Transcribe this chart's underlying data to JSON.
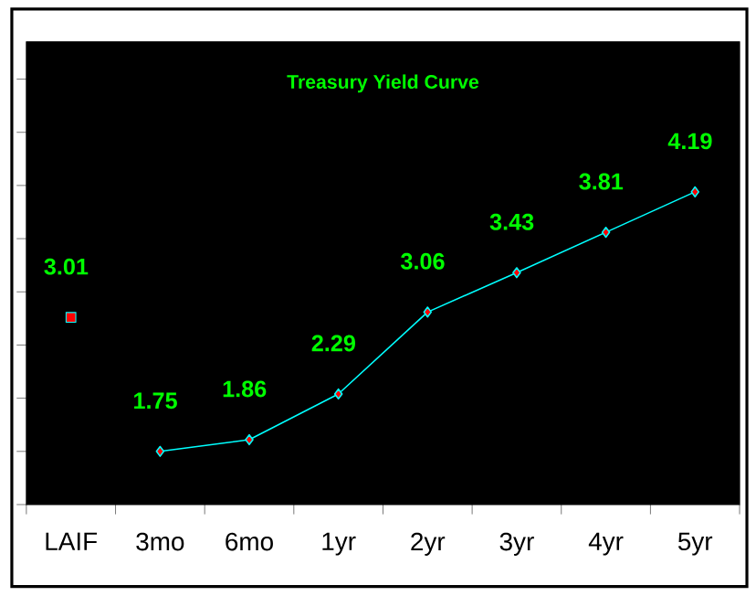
{
  "chart_data": {
    "type": "line",
    "title": "Treasury Yield Curve",
    "categories": [
      "LAIF",
      "3mo",
      "6mo",
      "1yr",
      "2yr",
      "3yr",
      "4yr",
      "5yr"
    ],
    "series": [
      {
        "type": "scatter",
        "marker": "square",
        "color": "#00ffff",
        "values": [
          3.01,
          null,
          null,
          null,
          null,
          null,
          null,
          null
        ]
      },
      {
        "marker": "diamond",
        "color": "#00ffff",
        "values": [
          null,
          1.75,
          1.86,
          2.29,
          3.06,
          3.43,
          3.81,
          4.19
        ]
      }
    ],
    "ylim": [
      1.25,
      5.6
    ],
    "yticks": [
      {
        "value": 1.25,
        "label": null
      },
      {
        "value": 1.75,
        "label": null
      },
      {
        "value": 2.25,
        "label": null
      },
      {
        "value": 2.75,
        "label": null
      },
      {
        "value": 3.25,
        "label": null
      },
      {
        "value": 3.75,
        "label": null
      },
      {
        "value": 4.25,
        "label": null
      },
      {
        "value": 4.75,
        "label": null
      },
      {
        "value": 5.25,
        "label": null
      }
    ],
    "tick_labels": "x",
    "data_labels": true,
    "grid": false
  }
}
